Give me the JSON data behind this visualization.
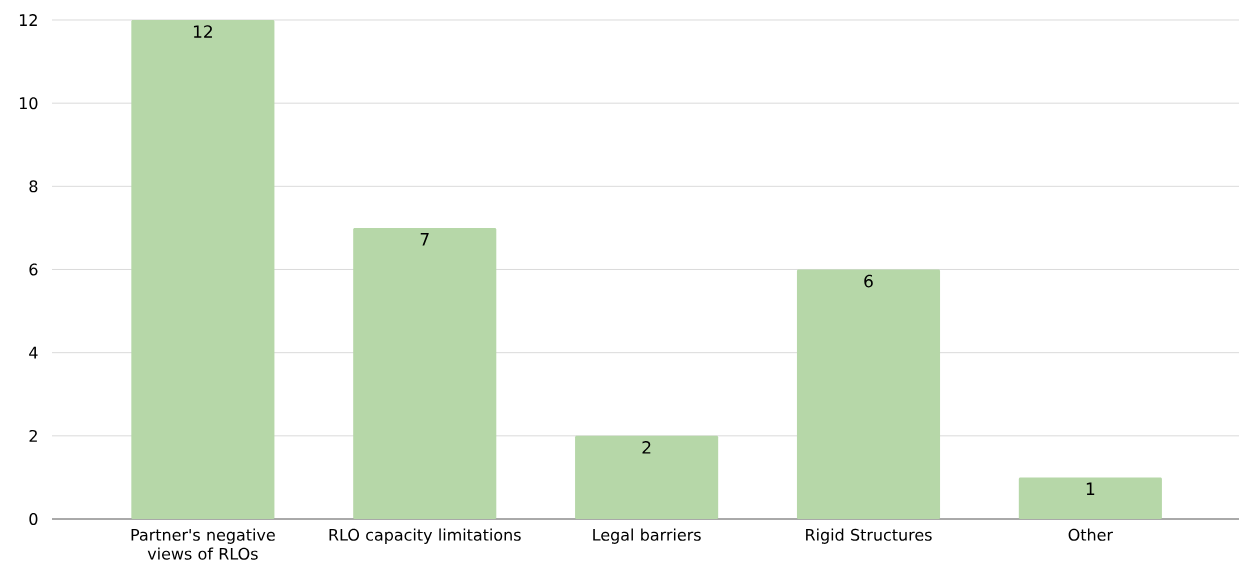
{
  "chart_data": {
    "type": "bar",
    "categories": [
      "Partner's negative views of RLOs",
      "RLO capacity limitations",
      "Legal barriers",
      "Rigid Structures",
      "Other"
    ],
    "values": [
      12,
      7,
      2,
      6,
      1
    ],
    "color": "#b6d7a8",
    "ylim": [
      0,
      12
    ],
    "yticks": [
      0,
      2,
      4,
      6,
      8,
      10,
      12
    ],
    "grid": "y",
    "data_labels": true
  }
}
